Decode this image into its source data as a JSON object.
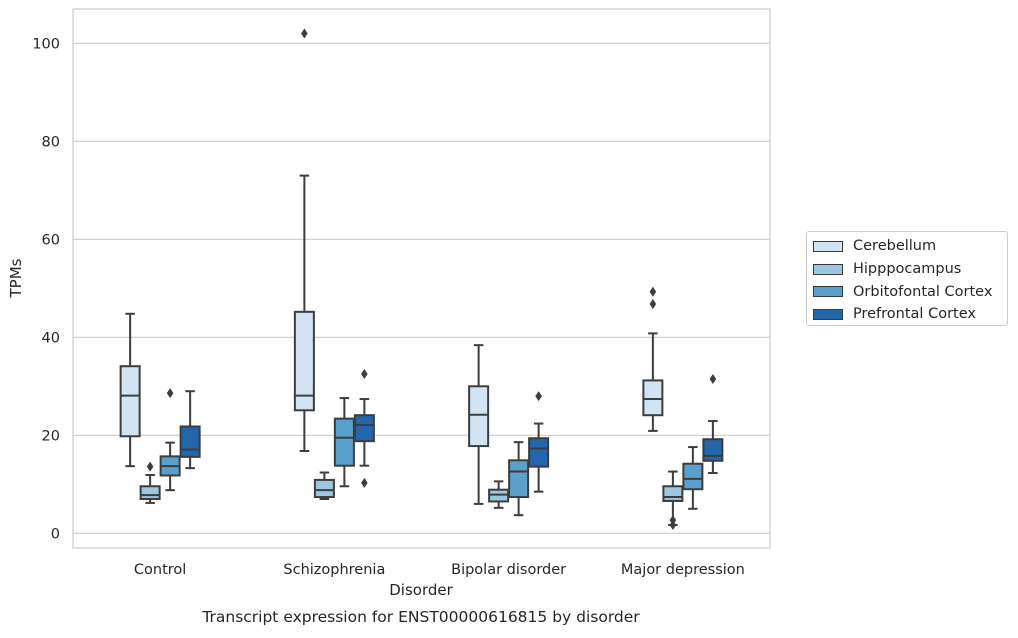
{
  "chart_data": {
    "type": "boxplot",
    "title": "Transcript expression for ENST00000616815 by disorder",
    "xlabel": "Disorder",
    "ylabel": "TPMs",
    "ylim": [
      -3,
      107
    ],
    "yticks": [
      0,
      20,
      40,
      60,
      80,
      100
    ],
    "grid": true,
    "legend_position": "right",
    "categories": [
      "Control",
      "Schizophrenia",
      "Bipolar disorder",
      "Major depression"
    ],
    "series": [
      {
        "name": "Cerebellum",
        "color": "#d2e3f3",
        "boxes": [
          {
            "whislo": 13.7,
            "q1": 19.8,
            "med": 28.1,
            "q3": 34.1,
            "whishi": 44.8,
            "fliers": []
          },
          {
            "whislo": 16.8,
            "q1": 25.1,
            "med": 28.1,
            "q3": 45.2,
            "whishi": 73.0,
            "fliers": [
              102.0
            ]
          },
          {
            "whislo": 6.0,
            "q1": 17.8,
            "med": 24.2,
            "q3": 30.0,
            "whishi": 38.4,
            "fliers": []
          },
          {
            "whislo": 20.9,
            "q1": 24.1,
            "med": 27.4,
            "q3": 31.2,
            "whishi": 40.8,
            "fliers": [
              46.8,
              49.3
            ]
          }
        ]
      },
      {
        "name": "Hipppocampus",
        "color": "#9ac8e0",
        "boxes": [
          {
            "whislo": 6.2,
            "q1": 7.0,
            "med": 7.8,
            "q3": 9.6,
            "whishi": 11.9,
            "fliers": [
              13.6
            ]
          },
          {
            "whislo": 7.0,
            "q1": 7.4,
            "med": 8.8,
            "q3": 10.9,
            "whishi": 12.4,
            "fliers": []
          },
          {
            "whislo": 5.2,
            "q1": 6.5,
            "med": 7.9,
            "q3": 8.9,
            "whishi": 10.6,
            "fliers": []
          },
          {
            "whislo": 1.7,
            "q1": 6.6,
            "med": 7.4,
            "q3": 9.6,
            "whishi": 12.6,
            "fliers": [
              2.7,
              1.7
            ]
          }
        ]
      },
      {
        "name": "Orbitofontal Cortex",
        "color": "#5aa0cd",
        "boxes": [
          {
            "whislo": 8.8,
            "q1": 11.8,
            "med": 13.7,
            "q3": 15.7,
            "whishi": 18.5,
            "fliers": [
              28.6
            ]
          },
          {
            "whislo": 9.6,
            "q1": 13.8,
            "med": 19.5,
            "q3": 23.4,
            "whishi": 27.6,
            "fliers": []
          },
          {
            "whislo": 3.7,
            "q1": 7.4,
            "med": 12.6,
            "q3": 14.9,
            "whishi": 18.6,
            "fliers": []
          },
          {
            "whislo": 5.0,
            "q1": 9.0,
            "med": 11.1,
            "q3": 14.2,
            "whishi": 17.6,
            "fliers": []
          }
        ]
      },
      {
        "name": "Prefrontal Cortex",
        "color": "#2266ac",
        "boxes": [
          {
            "whislo": 13.3,
            "q1": 15.6,
            "med": 17.1,
            "q3": 21.8,
            "whishi": 29.0,
            "fliers": []
          },
          {
            "whislo": 13.8,
            "q1": 18.8,
            "med": 22.1,
            "q3": 24.1,
            "whishi": 27.4,
            "fliers": [
              32.5,
              10.3
            ]
          },
          {
            "whislo": 8.5,
            "q1": 13.6,
            "med": 17.3,
            "q3": 19.4,
            "whishi": 22.4,
            "fliers": [
              28.0
            ]
          },
          {
            "whislo": 12.3,
            "q1": 14.8,
            "med": 15.8,
            "q3": 19.2,
            "whishi": 22.9,
            "fliers": [
              31.5
            ]
          }
        ]
      }
    ]
  }
}
